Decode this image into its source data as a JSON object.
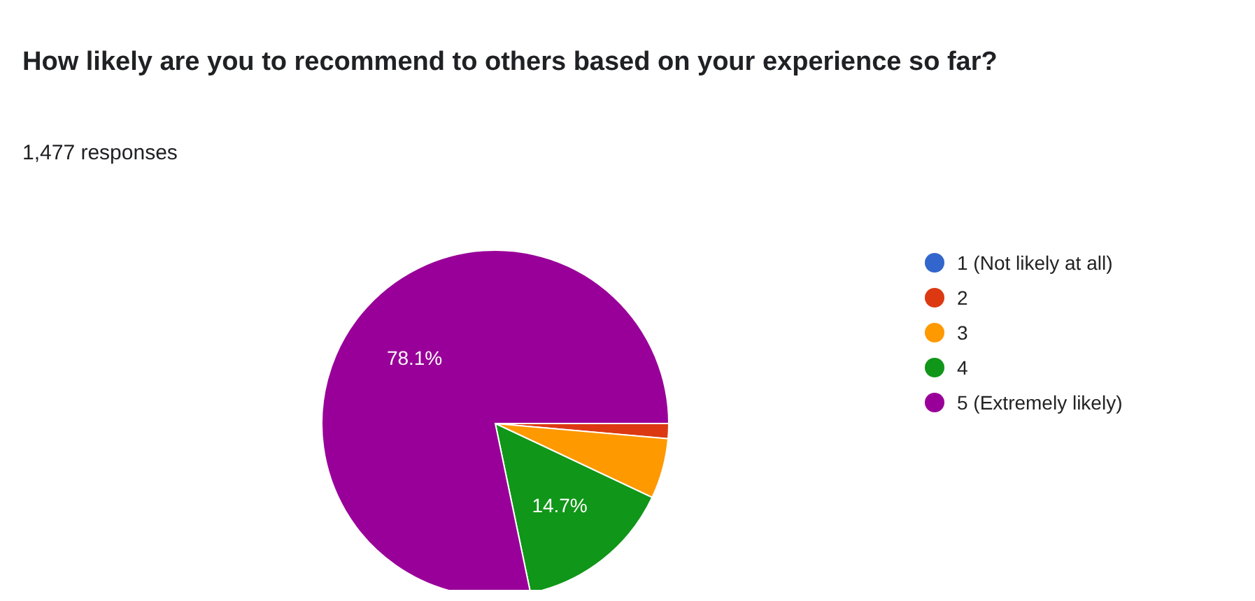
{
  "chart_data": {
    "type": "pie",
    "title": "How likely are you to recommend to others based on your experience so far?",
    "subtitle": "1,477 responses",
    "categories": [
      "1 (Not likely at all)",
      "2",
      "3",
      "4",
      "5 (Extremely likely)"
    ],
    "values": [
      null,
      1.4,
      5.6,
      14.7,
      78.1
    ],
    "colors": [
      "#3366cc",
      "#dc3912",
      "#ff9900",
      "#109618",
      "#990099"
    ],
    "value_labels": [
      null,
      null,
      null,
      "14.7%",
      "78.1%"
    ],
    "legend": "right"
  }
}
